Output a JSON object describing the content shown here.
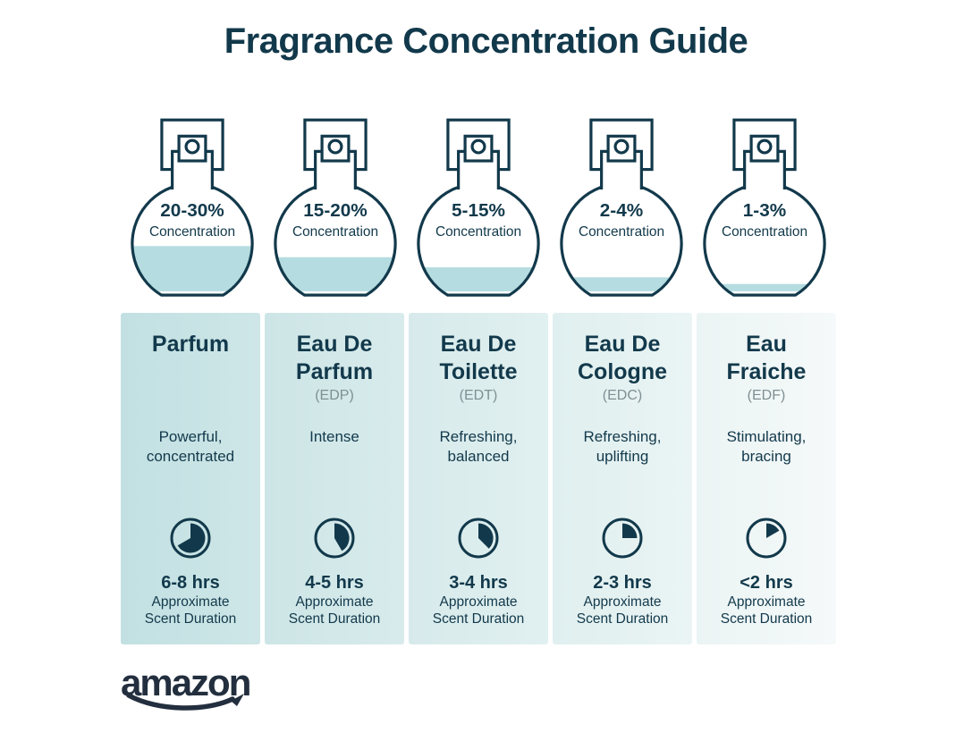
{
  "title": "Fragrance Concentration Guide",
  "colors": {
    "ink": "#12394b",
    "liquid": "#b5dce0",
    "abbr_gray": "#7f8f93",
    "amazon_ink": "#232f3e"
  },
  "bottles": [
    {
      "range": "20-30%",
      "label": "Concentration",
      "fill_pct": 44
    },
    {
      "range": "15-20%",
      "label": "Concentration",
      "fill_pct": 34
    },
    {
      "range": "5-15%",
      "label": "Concentration",
      "fill_pct": 25
    },
    {
      "range": "2-4%",
      "label": "Concentration",
      "fill_pct": 16
    },
    {
      "range": "1-3%",
      "label": "Concentration",
      "fill_pct": 10
    }
  ],
  "columns": [
    {
      "name": "Parfum",
      "abbr": "",
      "description": "Powerful, concentrated",
      "clock_deg": 240,
      "duration": "6-8 hrs",
      "duration_note": "Approximate Scent Duration",
      "bg_start": "#c2e0e2",
      "bg_end": "#cee6e7"
    },
    {
      "name": "Eau De Parfum",
      "abbr": "(EDP)",
      "description": "Intense",
      "clock_deg": 150,
      "duration": "4-5 hrs",
      "duration_note": "Approximate Scent Duration",
      "bg_start": "#cde5e6",
      "bg_end": "#d8ebec"
    },
    {
      "name": "Eau De Toilette",
      "abbr": "(EDT)",
      "description": "Refreshing, balanced",
      "clock_deg": 135,
      "duration": "3-4 hrs",
      "duration_note": "Approximate Scent Duration",
      "bg_start": "#d7eaeb",
      "bg_end": "#e1f0f0"
    },
    {
      "name": "Eau De Cologne",
      "abbr": "(EDC)",
      "description": "Refreshing, uplifting",
      "clock_deg": 90,
      "duration": "2-3 hrs",
      "duration_note": "Approximate Scent Duration",
      "bg_start": "#e0efef",
      "bg_end": "#eaf4f4"
    },
    {
      "name": "Eau Fraiche",
      "abbr": "(EDF)",
      "description": "Stimulating, bracing",
      "clock_deg": 60,
      "duration": "<2 hrs",
      "duration_note": "Approximate Scent Duration",
      "bg_start": "#ebf4f4",
      "bg_end": "#f5f9f9"
    }
  ],
  "footer": {
    "brand": "amazon"
  }
}
